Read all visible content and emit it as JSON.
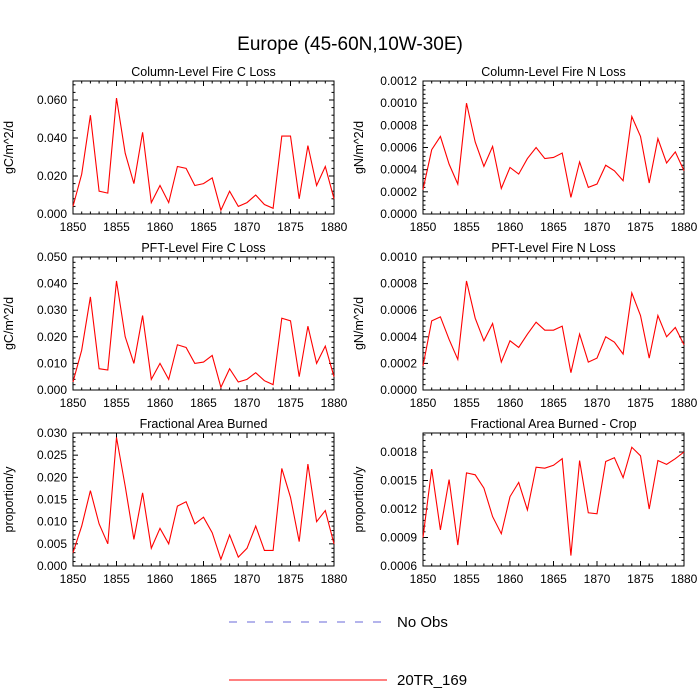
{
  "title": "Europe (45-60N,10W-30E)",
  "colors": {
    "model": "#ff0000",
    "obs": "#6a6ad8"
  },
  "legend": [
    {
      "label": "No Obs",
      "style": "dashed",
      "color": "#6a6ad8"
    },
    {
      "label": "20TR_169",
      "style": "solid",
      "color": "#ff0000"
    }
  ],
  "chart_data": [
    {
      "type": "line",
      "title": "Column-Level Fire C Loss",
      "ylabel": "gC/m^2/d",
      "xlim": [
        1850,
        1880
      ],
      "ylim": [
        0,
        0.07
      ],
      "xticks": [
        "1850",
        "1855",
        "1860",
        "1865",
        "1870",
        "1875",
        "1880"
      ],
      "yticks": [
        0,
        0.02,
        0.04,
        0.06
      ],
      "ytick_labels": [
        "0.000",
        "0.020",
        "0.040",
        "0.060"
      ],
      "series": [
        {
          "name": "20TR_169",
          "x": [
            1850,
            1851,
            1852,
            1853,
            1854,
            1855,
            1856,
            1857,
            1858,
            1859,
            1860,
            1861,
            1862,
            1863,
            1864,
            1865,
            1866,
            1867,
            1868,
            1869,
            1870,
            1871,
            1872,
            1873,
            1874,
            1875,
            1876,
            1877,
            1878,
            1879,
            1880
          ],
          "values": [
            0.004,
            0.021,
            0.052,
            0.012,
            0.011,
            0.061,
            0.032,
            0.016,
            0.043,
            0.006,
            0.015,
            0.006,
            0.025,
            0.024,
            0.015,
            0.016,
            0.019,
            0.002,
            0.012,
            0.004,
            0.006,
            0.01,
            0.005,
            0.003,
            0.041,
            0.041,
            0.008,
            0.036,
            0.015,
            0.025,
            0.008
          ]
        }
      ]
    },
    {
      "type": "line",
      "title": "Column-Level Fire N Loss",
      "ylabel": "gN/m^2/d",
      "xlim": [
        1850,
        1880
      ],
      "ylim": [
        0,
        0.0012
      ],
      "xticks": [
        "1850",
        "1855",
        "1860",
        "1865",
        "1870",
        "1875",
        "1880"
      ],
      "yticks": [
        0,
        0.0002,
        0.0004,
        0.0006,
        0.0008,
        0.001,
        0.0012
      ],
      "ytick_labels": [
        "0.0000",
        "0.0002",
        "0.0004",
        "0.0006",
        "0.0008",
        "0.0010",
        "0.0012"
      ],
      "series": [
        {
          "name": "20TR_169",
          "x": [
            1850,
            1851,
            1852,
            1853,
            1854,
            1855,
            1856,
            1857,
            1858,
            1859,
            1860,
            1861,
            1862,
            1863,
            1864,
            1865,
            1866,
            1867,
            1868,
            1869,
            1870,
            1871,
            1872,
            1873,
            1874,
            1875,
            1876,
            1877,
            1878,
            1879,
            1880
          ],
          "values": [
            0.00022,
            0.00058,
            0.0007,
            0.00045,
            0.00027,
            0.001,
            0.00065,
            0.00043,
            0.00061,
            0.00023,
            0.00042,
            0.00036,
            0.0005,
            0.0006,
            0.0005,
            0.00051,
            0.00055,
            0.00015,
            0.00047,
            0.00024,
            0.00027,
            0.00044,
            0.00039,
            0.0003,
            0.00088,
            0.0007,
            0.00028,
            0.00068,
            0.00046,
            0.00056,
            0.00039
          ]
        }
      ]
    },
    {
      "type": "line",
      "title": "PFT-Level Fire C Loss",
      "ylabel": "gC/m^2/d",
      "xlim": [
        1850,
        1880
      ],
      "ylim": [
        0,
        0.05
      ],
      "xticks": [
        "1850",
        "1855",
        "1860",
        "1865",
        "1870",
        "1875",
        "1880"
      ],
      "yticks": [
        0,
        0.01,
        0.02,
        0.03,
        0.04,
        0.05
      ],
      "ytick_labels": [
        "0.000",
        "0.010",
        "0.020",
        "0.030",
        "0.040",
        "0.050"
      ],
      "series": [
        {
          "name": "20TR_169",
          "x": [
            1850,
            1851,
            1852,
            1853,
            1854,
            1855,
            1856,
            1857,
            1858,
            1859,
            1860,
            1861,
            1862,
            1863,
            1864,
            1865,
            1866,
            1867,
            1868,
            1869,
            1870,
            1871,
            1872,
            1873,
            1874,
            1875,
            1876,
            1877,
            1878,
            1879,
            1880
          ],
          "values": [
            0.003,
            0.015,
            0.035,
            0.008,
            0.0075,
            0.041,
            0.02,
            0.01,
            0.028,
            0.004,
            0.01,
            0.004,
            0.017,
            0.016,
            0.01,
            0.0105,
            0.013,
            0.001,
            0.008,
            0.003,
            0.004,
            0.0065,
            0.0035,
            0.002,
            0.027,
            0.026,
            0.005,
            0.024,
            0.01,
            0.0165,
            0.005
          ]
        }
      ]
    },
    {
      "type": "line",
      "title": "PFT-Level Fire N Loss",
      "ylabel": "gN/m^2/d",
      "xlim": [
        1850,
        1880
      ],
      "ylim": [
        0,
        0.001
      ],
      "xticks": [
        "1850",
        "1855",
        "1860",
        "1865",
        "1870",
        "1875",
        "1880"
      ],
      "yticks": [
        0,
        0.0002,
        0.0004,
        0.0006,
        0.0008,
        0.001
      ],
      "ytick_labels": [
        "0.0000",
        "0.0002",
        "0.0004",
        "0.0006",
        "0.0008",
        "0.0010"
      ],
      "series": [
        {
          "name": "20TR_169",
          "x": [
            1850,
            1851,
            1852,
            1853,
            1854,
            1855,
            1856,
            1857,
            1858,
            1859,
            1860,
            1861,
            1862,
            1863,
            1864,
            1865,
            1866,
            1867,
            1868,
            1869,
            1870,
            1871,
            1872,
            1873,
            1874,
            1875,
            1876,
            1877,
            1878,
            1879,
            1880
          ],
          "values": [
            0.00018,
            0.00052,
            0.00055,
            0.00038,
            0.00023,
            0.00082,
            0.00054,
            0.00037,
            0.0005,
            0.00021,
            0.00037,
            0.00032,
            0.00042,
            0.00051,
            0.00045,
            0.00045,
            0.00048,
            0.00013,
            0.00042,
            0.00021,
            0.00024,
            0.0004,
            0.00036,
            0.00027,
            0.00073,
            0.00056,
            0.00024,
            0.00056,
            0.0004,
            0.00047,
            0.00034
          ]
        }
      ]
    },
    {
      "type": "line",
      "title": "Fractional Area Burned",
      "ylabel": "proportion/y",
      "xlim": [
        1850,
        1880
      ],
      "ylim": [
        0,
        0.03
      ],
      "xticks": [
        "1850",
        "1855",
        "1860",
        "1865",
        "1870",
        "1875",
        "1880"
      ],
      "yticks": [
        0,
        0.005,
        0.01,
        0.015,
        0.02,
        0.025,
        0.03
      ],
      "ytick_labels": [
        "0.000",
        "0.005",
        "0.010",
        "0.015",
        "0.020",
        "0.025",
        "0.030"
      ],
      "series": [
        {
          "name": "20TR_169",
          "x": [
            1850,
            1851,
            1852,
            1853,
            1854,
            1855,
            1856,
            1857,
            1858,
            1859,
            1860,
            1861,
            1862,
            1863,
            1864,
            1865,
            1866,
            1867,
            1868,
            1869,
            1870,
            1871,
            1872,
            1873,
            1874,
            1875,
            1876,
            1877,
            1878,
            1879,
            1880
          ],
          "values": [
            0.003,
            0.009,
            0.017,
            0.0095,
            0.005,
            0.029,
            0.018,
            0.006,
            0.0165,
            0.004,
            0.0085,
            0.005,
            0.0135,
            0.0145,
            0.0095,
            0.011,
            0.0075,
            0.0015,
            0.007,
            0.002,
            0.004,
            0.009,
            0.0035,
            0.0035,
            0.022,
            0.0155,
            0.0055,
            0.023,
            0.01,
            0.0125,
            0.005
          ]
        }
      ]
    },
    {
      "type": "line",
      "title": "Fractional Area Burned - Crop",
      "ylabel": "proportion/y",
      "xlim": [
        1850,
        1880
      ],
      "ylim": [
        0.0006,
        0.002
      ],
      "xticks": [
        "1850",
        "1855",
        "1860",
        "1865",
        "1870",
        "1875",
        "1880"
      ],
      "yticks": [
        0.0006,
        0.0009,
        0.0012,
        0.0015,
        0.0018
      ],
      "ytick_labels": [
        "0.0006",
        "0.0009",
        "0.0012",
        "0.0015",
        "0.0018"
      ],
      "series": [
        {
          "name": "20TR_169",
          "x": [
            1850,
            1851,
            1852,
            1853,
            1854,
            1855,
            1856,
            1857,
            1858,
            1859,
            1860,
            1861,
            1862,
            1863,
            1864,
            1865,
            1866,
            1867,
            1868,
            1869,
            1870,
            1871,
            1872,
            1873,
            1874,
            1875,
            1876,
            1877,
            1878,
            1879,
            1880
          ],
          "values": [
            0.0009,
            0.00162,
            0.00098,
            0.00151,
            0.00082,
            0.00158,
            0.00156,
            0.00142,
            0.00112,
            0.00094,
            0.00133,
            0.00148,
            0.00119,
            0.00164,
            0.00163,
            0.00166,
            0.00173,
            0.00071,
            0.00171,
            0.00116,
            0.00115,
            0.0017,
            0.00174,
            0.00153,
            0.00185,
            0.00176,
            0.0012,
            0.00171,
            0.00167,
            0.00173,
            0.0018
          ]
        }
      ]
    }
  ]
}
